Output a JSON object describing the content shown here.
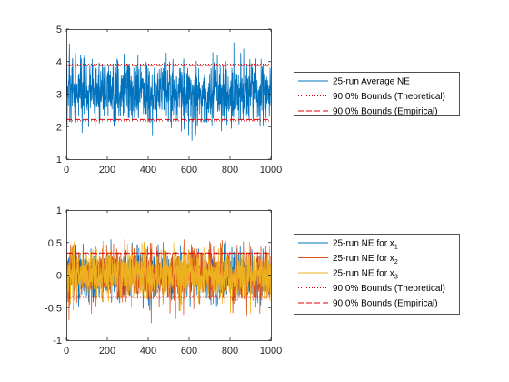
{
  "colors": {
    "blue": "#0072BD",
    "orange": "#D95319",
    "yellow": "#EDB120",
    "red": "#E00000",
    "axis": "#262626",
    "background": "#ffffff"
  },
  "chart_data": [
    {
      "type": "line",
      "title": "",
      "xlabel": "",
      "ylabel": "",
      "xlim": [
        0,
        1000
      ],
      "ylim": [
        1,
        5
      ],
      "xticks": [
        0,
        200,
        400,
        600,
        800,
        1000
      ],
      "yticks": [
        1,
        2,
        3,
        4,
        5
      ],
      "grid": false,
      "legend_position": "outside right",
      "series": [
        {
          "name": "25-run Average NE",
          "style": "solid",
          "color": "#0072BD",
          "n": 1000,
          "mean": 3.05,
          "min": 1.45,
          "max": 4.6
        },
        {
          "name": "90.0% Bounds (Theoretical)",
          "style": "dotted",
          "color": "#E00000",
          "y": [
            2.18,
            3.92
          ]
        },
        {
          "name": "90.0% Bounds (Empirical)",
          "style": "dashed",
          "color": "#E00000",
          "y": [
            2.22,
            3.88
          ]
        }
      ],
      "legend": [
        {
          "label": "25-run Average NE"
        },
        {
          "label": "90.0% Bounds (Theoretical)"
        },
        {
          "label": "90.0% Bounds (Empirical)"
        }
      ]
    },
    {
      "type": "line",
      "title": "",
      "xlabel": "",
      "ylabel": "",
      "xlim": [
        0,
        1000
      ],
      "ylim": [
        -1,
        1
      ],
      "xticks": [
        0,
        200,
        400,
        600,
        800,
        1000
      ],
      "yticks": [
        "-1",
        "-0.5",
        "0",
        "0.5",
        "1"
      ],
      "grid": false,
      "legend_position": "outside right",
      "series": [
        {
          "name": "25-run NE for x1",
          "style": "solid",
          "color": "#0072BD",
          "n": 1000,
          "mean": 0.0,
          "min": -0.55,
          "max": 0.55
        },
        {
          "name": "25-run NE for x2",
          "style": "solid",
          "color": "#D95319",
          "n": 1000,
          "mean": 0.0,
          "min": -0.8,
          "max": 0.55
        },
        {
          "name": "25-run NE for x3",
          "style": "solid",
          "color": "#EDB120",
          "n": 1000,
          "mean": 0.0,
          "min": -0.6,
          "max": 0.55
        },
        {
          "name": "90.0% Bounds (Theoretical)",
          "style": "dotted",
          "color": "#E00000",
          "y": [
            -0.33,
            0.33
          ]
        },
        {
          "name": "90.0% Bounds (Empirical)",
          "style": "dashed",
          "color": "#E00000",
          "y": [
            -0.34,
            0.34
          ]
        }
      ],
      "legend": [
        {
          "label": "25-run NE for x",
          "sub": "1"
        },
        {
          "label": "25-run NE for x",
          "sub": "2"
        },
        {
          "label": "25-run NE for x",
          "sub": "3"
        },
        {
          "label": "90.0% Bounds (Theoretical)"
        },
        {
          "label": "90.0% Bounds (Empirical)"
        }
      ]
    }
  ]
}
